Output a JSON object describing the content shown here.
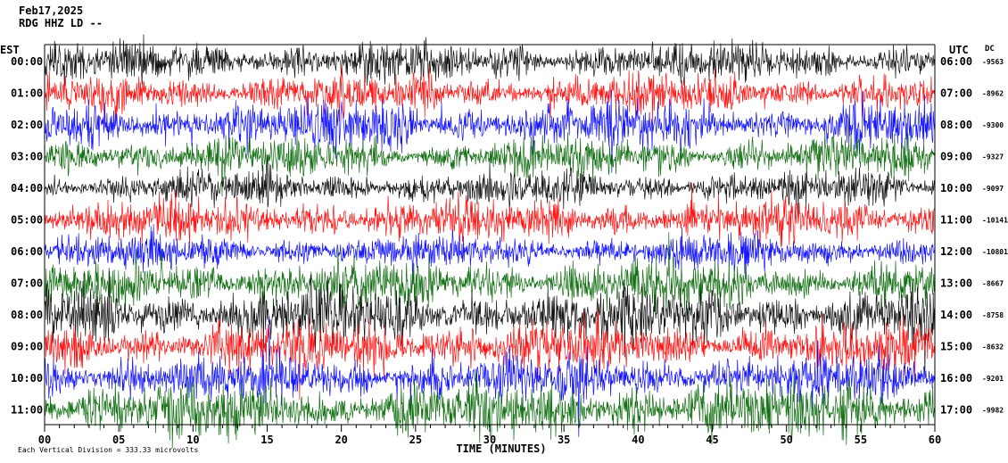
{
  "chart_data": {
    "type": "line",
    "title": "Feb17,2025",
    "subtitle": "RDG HHZ LD --",
    "left_header": "EST",
    "right_header": "UTC",
    "dc_header": "DC",
    "xlabel": "TIME (MINUTES)",
    "xlim": [
      0,
      60
    ],
    "x_ticks": [
      "00",
      "05",
      "10",
      "15",
      "20",
      "25",
      "30",
      "35",
      "40",
      "45",
      "50",
      "55",
      "60"
    ],
    "footer_text": "Each Vertical Division =  333.33 microvolts",
    "trace_colors": [
      "#000000",
      "#ff0000",
      "#0000ff",
      "#006400"
    ],
    "rows": [
      {
        "est": "00:00",
        "utc": "06:00",
        "dc": "-9563",
        "color": "#000000",
        "amp": 0.9
      },
      {
        "est": "01:00",
        "utc": "07:00",
        "dc": "-8962",
        "color": "#ff0000",
        "amp": 0.9
      },
      {
        "est": "02:00",
        "utc": "08:00",
        "dc": "-9300",
        "color": "#0000ff",
        "amp": 1.1
      },
      {
        "est": "03:00",
        "utc": "09:00",
        "dc": "-9327",
        "color": "#006400",
        "amp": 0.9
      },
      {
        "est": "04:00",
        "utc": "10:00",
        "dc": "-9097",
        "color": "#000000",
        "amp": 0.8
      },
      {
        "est": "05:00",
        "utc": "11:00",
        "dc": "-10141",
        "color": "#ff0000",
        "amp": 1.0
      },
      {
        "est": "06:00",
        "utc": "12:00",
        "dc": "-10801",
        "color": "#0000ff",
        "amp": 0.8
      },
      {
        "est": "07:00",
        "utc": "13:00",
        "dc": "-8667",
        "color": "#006400",
        "amp": 1.1
      },
      {
        "est": "08:00",
        "utc": "14:00",
        "dc": "-8758",
        "color": "#000000",
        "amp": 1.3
      },
      {
        "est": "09:00",
        "utc": "15:00",
        "dc": "-8632",
        "color": "#ff0000",
        "amp": 1.2
      },
      {
        "est": "10:00",
        "utc": "16:00",
        "dc": "-9201",
        "color": "#0000ff",
        "amp": 1.1
      },
      {
        "est": "11:00",
        "utc": "17:00",
        "dc": "-9982",
        "color": "#006400",
        "amp": 1.3
      }
    ]
  }
}
